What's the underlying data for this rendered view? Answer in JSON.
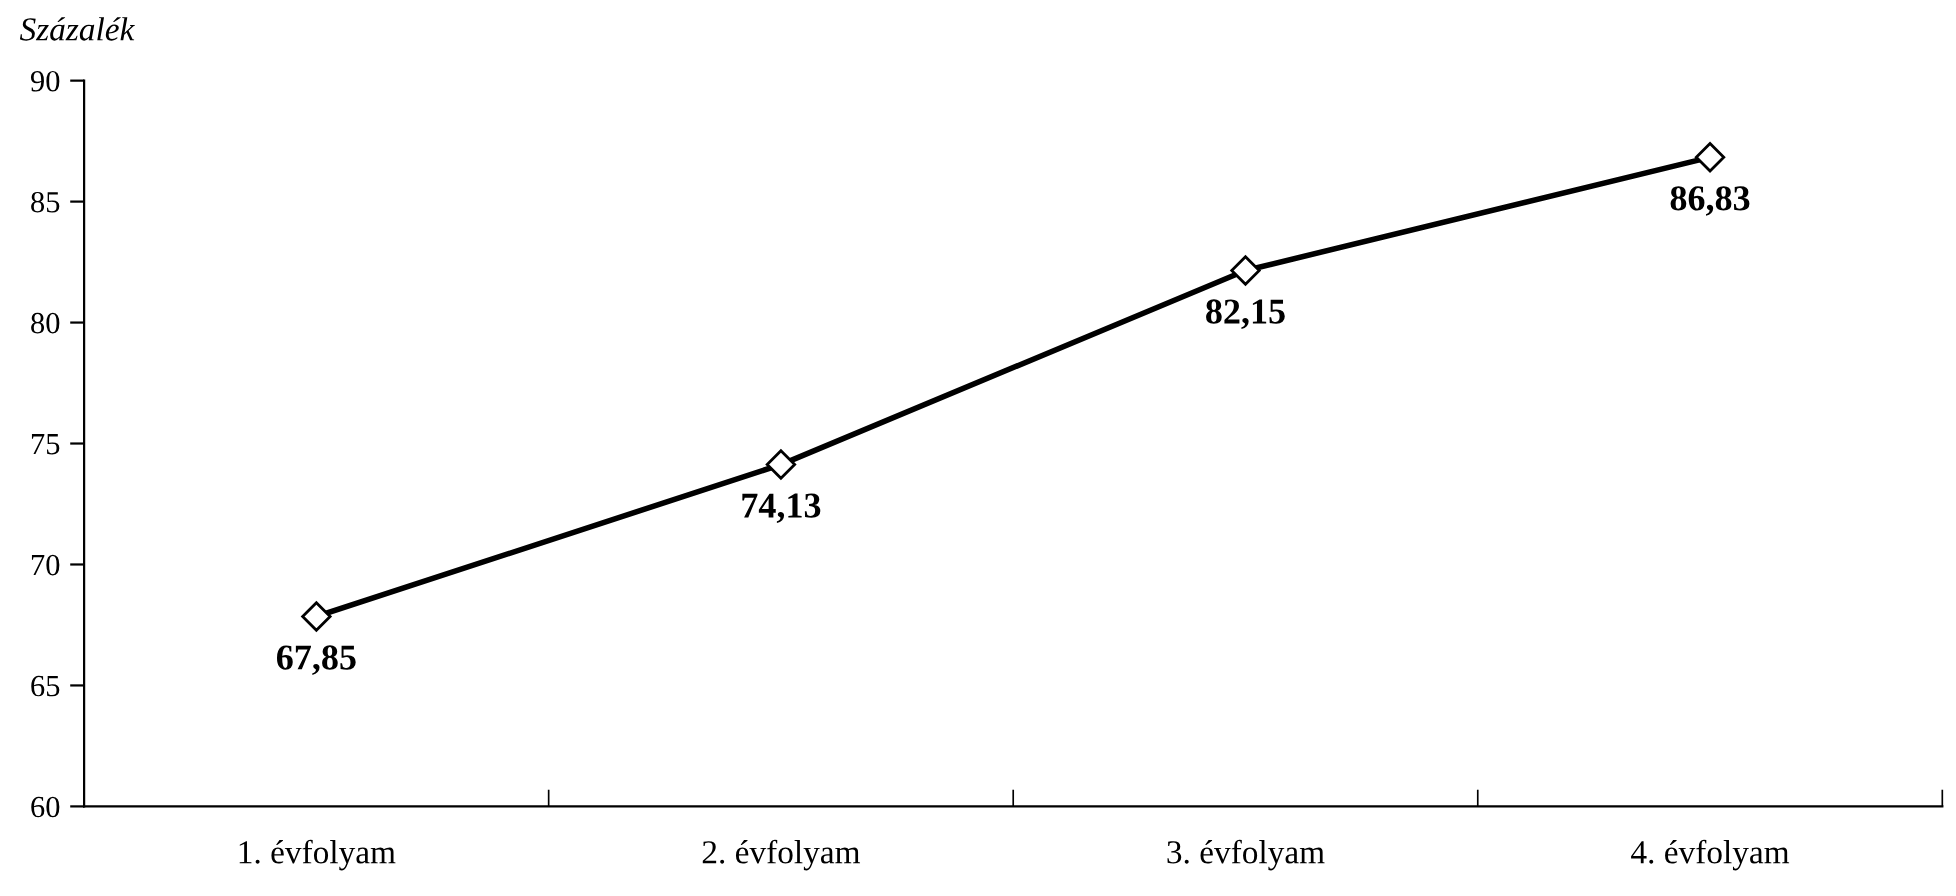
{
  "chart_data": {
    "type": "line",
    "ylabel": "Százalék",
    "categories": [
      "1. évfolyam",
      "2. évfolyam",
      "3. évfolyam",
      "4. évfolyam"
    ],
    "series": [
      {
        "color": "#000000",
        "values": [
          67.85,
          74.13,
          82.15,
          86.83
        ],
        "value_labels": [
          "67,85",
          "74,13",
          "82,15",
          "86,83"
        ]
      }
    ],
    "ylim": [
      60,
      90
    ],
    "yticks": [
      60,
      65,
      70,
      75,
      80,
      85,
      90
    ],
    "grid": false,
    "legend": false,
    "marker": "diamond",
    "line_style": "solid"
  }
}
